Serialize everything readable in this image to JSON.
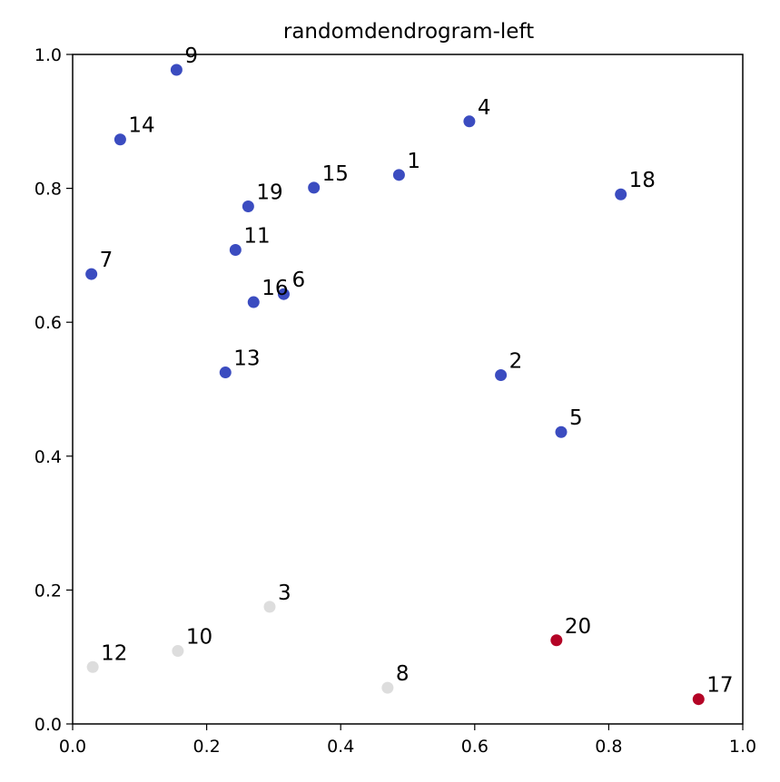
{
  "chart_data": {
    "type": "scatter",
    "title": "randomdendrogram-left",
    "xlabel": "",
    "ylabel": "",
    "xlim": [
      0.0,
      1.0
    ],
    "ylim": [
      0.0,
      1.0
    ],
    "x_ticks": [
      "0.0",
      "0.2",
      "0.4",
      "0.6",
      "0.8",
      "1.0"
    ],
    "y_ticks": [
      "0.0",
      "0.2",
      "0.4",
      "0.6",
      "0.8",
      "1.0"
    ],
    "grid": false,
    "colors": {
      "cluster_blue": "#3b4cc0",
      "cluster_gray": "#dddddd",
      "cluster_red": "#b40426"
    },
    "points": [
      {
        "label": "1",
        "x": 0.487,
        "y": 0.82,
        "color": "#3b4cc0"
      },
      {
        "label": "2",
        "x": 0.639,
        "y": 0.521,
        "color": "#3b4cc0"
      },
      {
        "label": "3",
        "x": 0.294,
        "y": 0.175,
        "color": "#dddddd"
      },
      {
        "label": "4",
        "x": 0.592,
        "y": 0.9,
        "color": "#3b4cc0"
      },
      {
        "label": "5",
        "x": 0.729,
        "y": 0.436,
        "color": "#3b4cc0"
      },
      {
        "label": "6",
        "x": 0.315,
        "y": 0.642,
        "color": "#3b4cc0"
      },
      {
        "label": "7",
        "x": 0.028,
        "y": 0.672,
        "color": "#3b4cc0"
      },
      {
        "label": "8",
        "x": 0.47,
        "y": 0.054,
        "color": "#dddddd"
      },
      {
        "label": "9",
        "x": 0.155,
        "y": 0.977,
        "color": "#3b4cc0"
      },
      {
        "label": "10",
        "x": 0.157,
        "y": 0.109,
        "color": "#dddddd"
      },
      {
        "label": "11",
        "x": 0.243,
        "y": 0.708,
        "color": "#3b4cc0"
      },
      {
        "label": "12",
        "x": 0.03,
        "y": 0.085,
        "color": "#dddddd"
      },
      {
        "label": "13",
        "x": 0.228,
        "y": 0.525,
        "color": "#3b4cc0"
      },
      {
        "label": "14",
        "x": 0.071,
        "y": 0.873,
        "color": "#3b4cc0"
      },
      {
        "label": "15",
        "x": 0.36,
        "y": 0.801,
        "color": "#3b4cc0"
      },
      {
        "label": "16",
        "x": 0.27,
        "y": 0.63,
        "color": "#3b4cc0"
      },
      {
        "label": "17",
        "x": 0.934,
        "y": 0.037,
        "color": "#b40426"
      },
      {
        "label": "18",
        "x": 0.818,
        "y": 0.791,
        "color": "#3b4cc0"
      },
      {
        "label": "19",
        "x": 0.262,
        "y": 0.773,
        "color": "#3b4cc0"
      },
      {
        "label": "20",
        "x": 0.722,
        "y": 0.125,
        "color": "#b40426"
      }
    ]
  }
}
